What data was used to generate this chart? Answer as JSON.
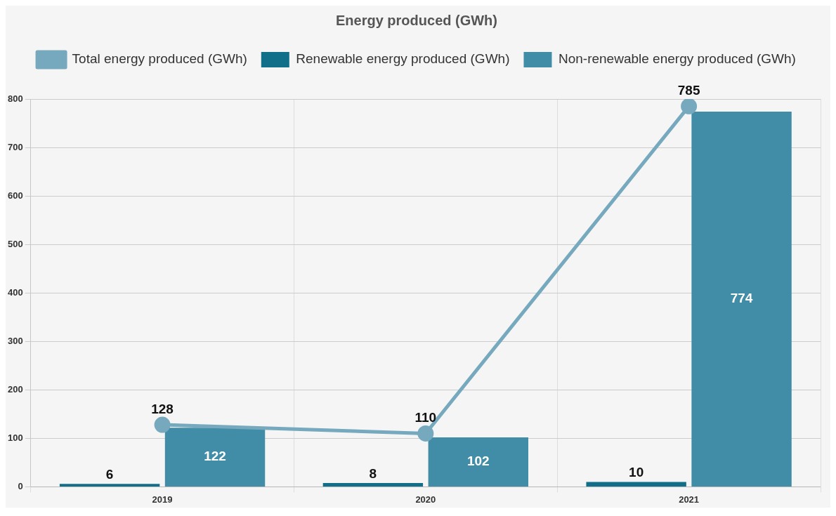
{
  "chart_data": {
    "type": "bar",
    "title": "Energy produced (GWh)",
    "categories": [
      "2019",
      "2020",
      "2021"
    ],
    "series": [
      {
        "name": "Total energy produced (GWh)",
        "type": "line",
        "color": "#76a9be",
        "values": [
          128,
          110,
          785
        ]
      },
      {
        "name": "Renewable energy produced (GWh)",
        "color": "#126f8a",
        "values": [
          6,
          8,
          10
        ]
      },
      {
        "name": "Non-renewable energy produced (GWh)",
        "color": "#418da8",
        "values": [
          122,
          102,
          774
        ]
      }
    ],
    "ylim": [
      0,
      800
    ],
    "yticks": [
      0,
      100,
      200,
      300,
      400,
      500,
      600,
      700,
      800
    ],
    "grid": true,
    "legend": "top",
    "marker": "circle",
    "data_labels": true
  }
}
